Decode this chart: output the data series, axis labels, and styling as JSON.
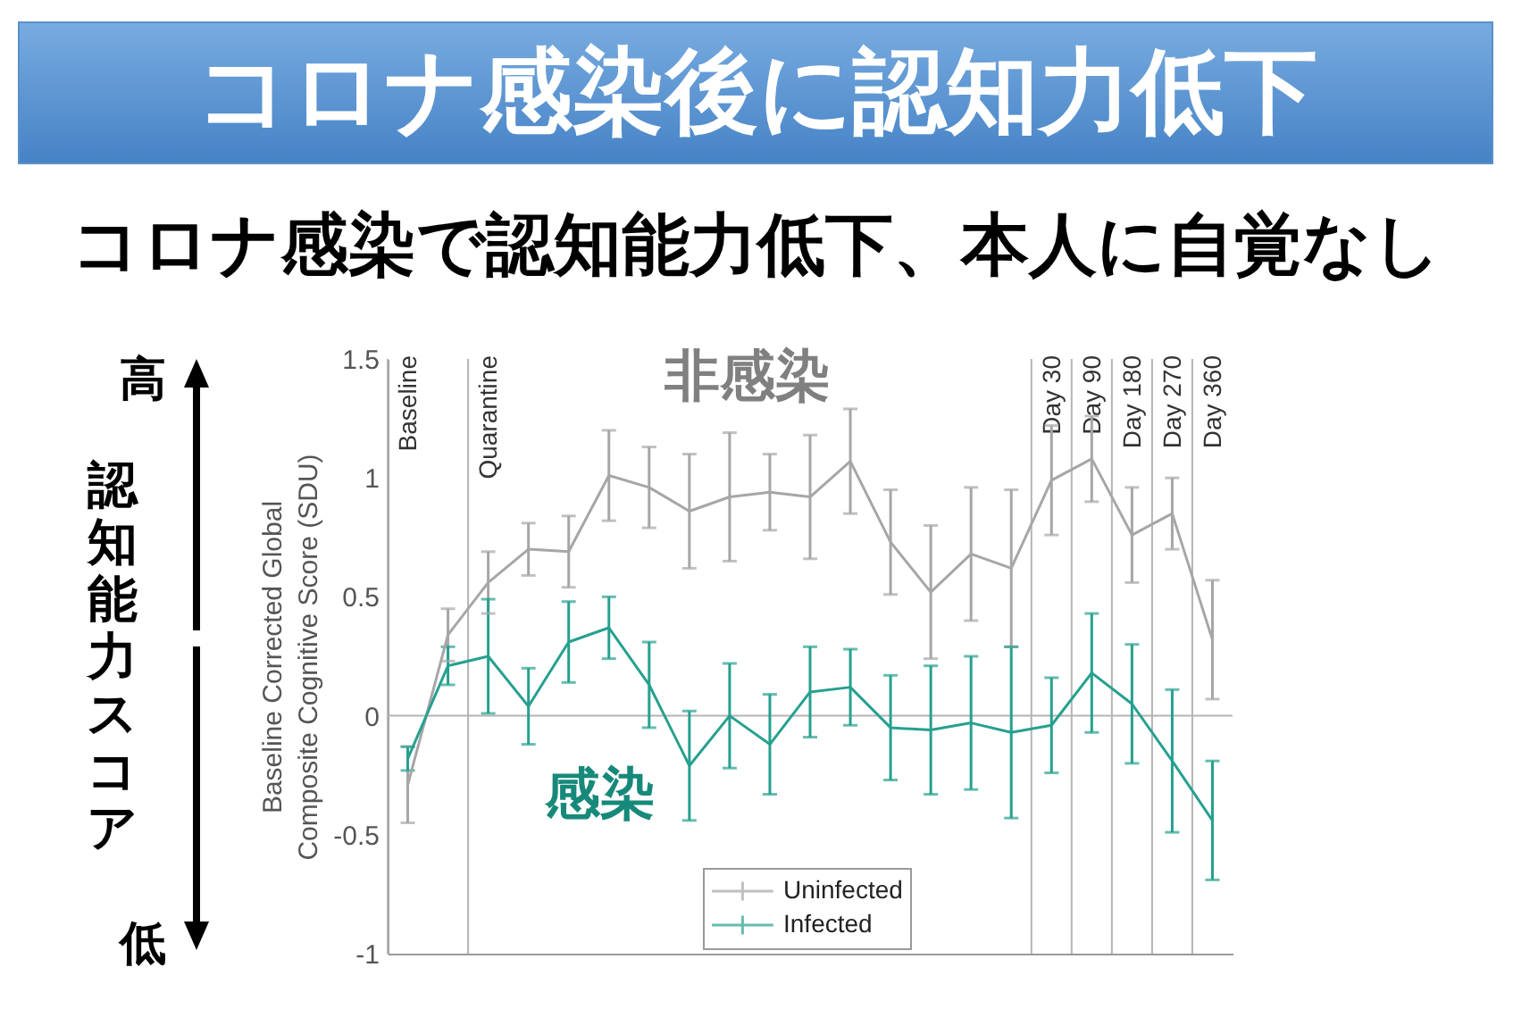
{
  "chart_data": {
    "type": "line",
    "title": "コロナ感染後に認知力低下",
    "subtitle": "コロナ感染で認知能力低下、本人に自覚なし",
    "ylabel": "Baseline Corrected Global\nComposite Cognitive Score (SDU)",
    "annotations": [
      "非感染",
      "感染",
      "高",
      "認知能力スコア",
      "低",
      "Baseline",
      "Quarantine",
      "Day 30",
      "Day 90",
      "Day 180",
      "Day 270",
      "Day 360"
    ],
    "categories": [
      null,
      null,
      null,
      null,
      null,
      null,
      null,
      null,
      null,
      null,
      null,
      null,
      null,
      null,
      null,
      null,
      null,
      null,
      null,
      null,
      null
    ],
    "series": [
      {
        "name": "Uninfected",
        "color": "#a6a6a6",
        "values": [
          -0.29,
          0.34,
          0.56,
          0.7,
          0.69,
          1.01,
          0.96,
          0.86,
          0.92,
          0.94,
          0.92,
          1.07,
          0.73,
          0.52,
          0.68,
          0.62,
          0.99,
          1.08,
          0.76,
          0.85,
          0.32
        ],
        "errors": [
          0.16,
          0.11,
          0.13,
          0.11,
          0.15,
          0.19,
          0.17,
          0.24,
          0.27,
          0.16,
          0.26,
          0.22,
          0.22,
          0.28,
          0.28,
          0.33,
          0.23,
          0.18,
          0.2,
          0.15,
          0.25
        ]
      },
      {
        "name": "Infected",
        "color": "#26a08f",
        "values": [
          -0.18,
          0.21,
          0.25,
          0.04,
          0.31,
          0.37,
          0.13,
          -0.21,
          0.0,
          -0.12,
          0.1,
          0.12,
          -0.05,
          -0.06,
          -0.03,
          -0.07,
          -0.04,
          0.18,
          0.05,
          -0.19,
          -0.44
        ],
        "errors": [
          0.05,
          0.08,
          0.24,
          0.16,
          0.17,
          0.13,
          0.18,
          0.23,
          0.22,
          0.21,
          0.19,
          0.16,
          0.22,
          0.27,
          0.28,
          0.36,
          0.2,
          0.25,
          0.25,
          0.3,
          0.25
        ]
      }
    ],
    "ylim": [
      -1,
      1.5
    ],
    "yticks": [
      -1,
      -0.5,
      0,
      0.5,
      1,
      1.5
    ],
    "ref_lines": [
      {
        "axis": "y",
        "value": 0
      }
    ],
    "legend": "bottom",
    "line_style": "solid",
    "grid": false
  }
}
